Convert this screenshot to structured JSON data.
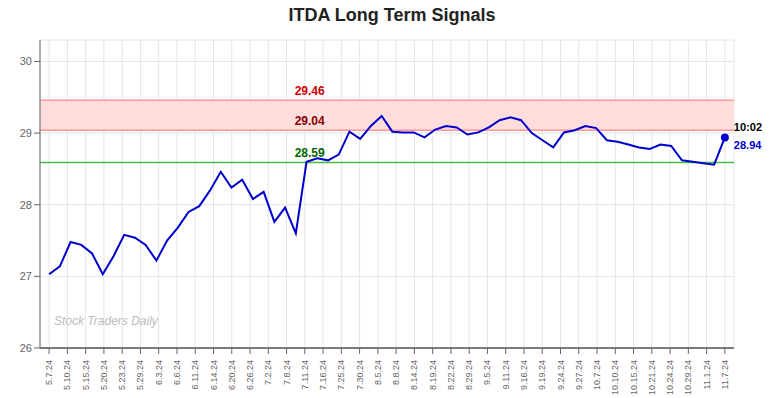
{
  "chart_data": {
    "type": "line",
    "title": "ITDA Long Term Signals",
    "x": [
      0,
      0.5873,
      1.1746,
      1.7619,
      2.3492,
      2.9365,
      3.5238,
      4.1111,
      4.6984,
      5.2857,
      5.873,
      6.4603,
      7.0476,
      7.6349,
      8.2222,
      8.8095,
      9.3968,
      9.9841,
      10.5714,
      11.1587,
      11.746,
      12.3333,
      12.9206,
      13.5079,
      14.0952,
      14.6825,
      15.2698,
      15.8571,
      16.4444,
      17.0317,
      17.619,
      18.2063,
      18.7937,
      19.381,
      19.9683,
      20.5556,
      21.1429,
      21.7302,
      22.3175,
      22.9048,
      23.4921,
      24.0794,
      24.6667,
      25.254,
      25.8413,
      26.4286,
      27.0159,
      27.6032,
      28.1905,
      28.7778,
      29.3651,
      29.9524,
      30.5397,
      31.127,
      31.7143,
      32.3016,
      32.8889,
      33.4762,
      34.0635,
      34.6508,
      35.2381,
      35.8254,
      36.4127,
      37
    ],
    "values": [
      27.03,
      27.14,
      27.48,
      27.44,
      27.32,
      27.03,
      27.28,
      27.58,
      27.54,
      27.44,
      27.22,
      27.5,
      27.68,
      27.9,
      27.98,
      28.2,
      28.46,
      28.24,
      28.35,
      28.08,
      28.18,
      27.76,
      27.96,
      27.6,
      28.6,
      28.65,
      28.62,
      28.7,
      29.02,
      28.92,
      29.1,
      29.24,
      29.02,
      29.01,
      29.01,
      28.94,
      29.05,
      29.1,
      29.08,
      28.98,
      29.01,
      29.08,
      29.18,
      29.22,
      29.18,
      29.0,
      28.9,
      28.8,
      29.01,
      29.04,
      29.1,
      29.07,
      28.9,
      28.88,
      28.84,
      28.8,
      28.78,
      28.84,
      28.82,
      28.62,
      28.6,
      28.58,
      28.56,
      28.94
    ],
    "color": "#0000cc",
    "xlim": [
      -0.5,
      37.5
    ],
    "xticks": [
      {
        "value": 0,
        "label": "5.7.24"
      },
      {
        "value": 1,
        "label": "5.10.24"
      },
      {
        "value": 2,
        "label": "5.15.24"
      },
      {
        "value": 3,
        "label": "5.20.24"
      },
      {
        "value": 4,
        "label": "5.23.24"
      },
      {
        "value": 5,
        "label": "5.29.24"
      },
      {
        "value": 6,
        "label": "6.3.24"
      },
      {
        "value": 7,
        "label": "6.6.24"
      },
      {
        "value": 8,
        "label": "6.11.24"
      },
      {
        "value": 9,
        "label": "6.14.24"
      },
      {
        "value": 10,
        "label": "6.20.24"
      },
      {
        "value": 11,
        "label": "6.26.24"
      },
      {
        "value": 12,
        "label": "7.2.24"
      },
      {
        "value": 13,
        "label": "7.8.24"
      },
      {
        "value": 14,
        "label": "7.11.24"
      },
      {
        "value": 15,
        "label": "7.16.24"
      },
      {
        "value": 16,
        "label": "7.25.24"
      },
      {
        "value": 17,
        "label": "7.30.24"
      },
      {
        "value": 18,
        "label": "8.5.24"
      },
      {
        "value": 19,
        "label": "8.8.24"
      },
      {
        "value": 20,
        "label": "8.14.24"
      },
      {
        "value": 21,
        "label": "8.19.24"
      },
      {
        "value": 22,
        "label": "8.22.24"
      },
      {
        "value": 23,
        "label": "8.29.24"
      },
      {
        "value": 24,
        "label": "9.5.24"
      },
      {
        "value": 25,
        "label": "9.11.24"
      },
      {
        "value": 26,
        "label": "9.16.24"
      },
      {
        "value": 27,
        "label": "9.19.24"
      },
      {
        "value": 28,
        "label": "9.24.24"
      },
      {
        "value": 29,
        "label": "9.27.24"
      },
      {
        "value": 30,
        "label": "10.7.24"
      },
      {
        "value": 31,
        "label": "10.10.24"
      },
      {
        "value": 32,
        "label": "10.15.24"
      },
      {
        "value": 33,
        "label": "10.21.24"
      },
      {
        "value": 34,
        "label": "10.24.24"
      },
      {
        "value": 35,
        "label": "10.29.24"
      },
      {
        "value": 36,
        "label": "11.1.24"
      },
      {
        "value": 37,
        "label": "11.7.24"
      }
    ],
    "ylim": [
      26,
      30.3
    ],
    "yticks": [
      26,
      27,
      28,
      29,
      30
    ],
    "grid": true,
    "band": {
      "from": 29.04,
      "to": 29.46,
      "color": "#ffdddd"
    },
    "hlines": [
      {
        "value": 29.46,
        "label": "29.46",
        "color": "#ff9999",
        "label_color": "#cc0000"
      },
      {
        "value": 29.04,
        "label": "29.04",
        "color": "#ff9999",
        "label_color": "#880000"
      },
      {
        "value": 28.59,
        "label": "28.59",
        "color": "#44bb44",
        "label_color": "#006600"
      }
    ],
    "last_point": {
      "label": "10:02",
      "value": 28.94,
      "color": "#0000cc"
    },
    "watermark": "Stock Traders Daily"
  }
}
